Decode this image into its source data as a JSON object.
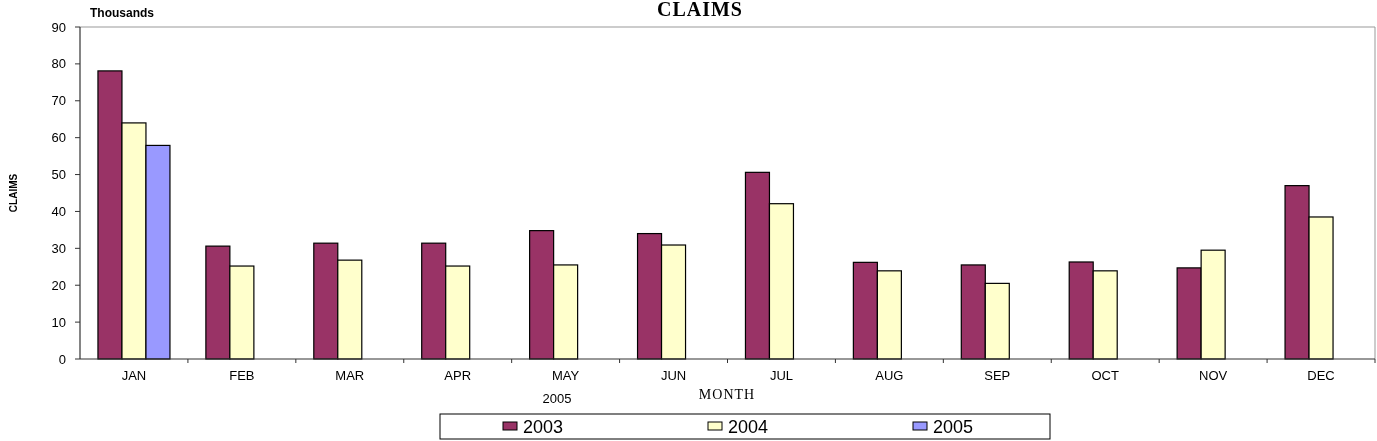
{
  "chart_data": {
    "type": "bar",
    "title": "CLAIMS",
    "xlabel": "MONTH",
    "ylabel": "CLAIMS",
    "annotations": [
      "Thousands",
      "2005"
    ],
    "categories": [
      "JAN",
      "FEB",
      "MAR",
      "APR",
      "MAY",
      "JUN",
      "JUL",
      "AUG",
      "SEP",
      "OCT",
      "NOV",
      "DEC"
    ],
    "series": [
      {
        "name": "2003",
        "color": "#993366",
        "values": [
          78.1,
          30.6,
          31.4,
          31.4,
          34.8,
          34.0,
          50.6,
          26.2,
          25.5,
          26.3,
          24.7,
          47.0
        ]
      },
      {
        "name": "2004",
        "color": "#ffffcc",
        "values": [
          64.0,
          25.2,
          26.8,
          25.2,
          25.5,
          30.9,
          42.1,
          23.9,
          20.5,
          23.9,
          29.5,
          38.5
        ]
      },
      {
        "name": "2005",
        "color": "#9999ff",
        "values": [
          57.9,
          null,
          null,
          null,
          null,
          null,
          null,
          null,
          null,
          null,
          null,
          null
        ]
      }
    ],
    "ylim": [
      0,
      90
    ],
    "yticks": [
      0,
      10,
      20,
      30,
      40,
      50,
      60,
      70,
      80,
      90
    ],
    "grid": false,
    "legend": "bottom"
  }
}
